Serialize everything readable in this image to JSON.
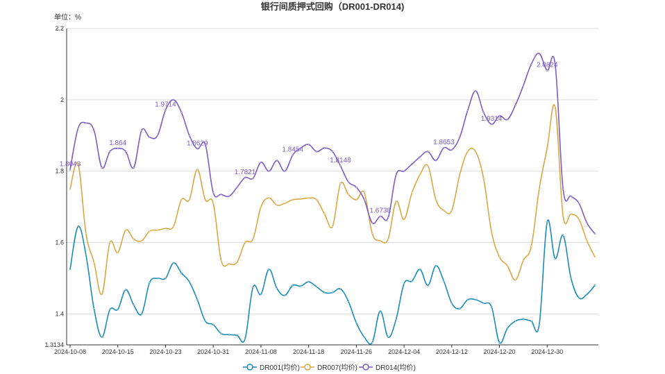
{
  "chart_data": {
    "type": "line",
    "title": "银行间质押式回购（DR001-DR014)",
    "ylabel": "单位：%",
    "ylim": [
      1.3134,
      2.2
    ],
    "ytick_labels": [
      "2.2",
      "2",
      "1.8",
      "1.6",
      "1.4",
      "1.3134"
    ],
    "ytick_values": [
      2.2,
      2.0,
      1.8,
      1.6,
      1.4,
      1.3134
    ],
    "x_tick_labels": [
      "2024-10-08",
      "2024-10-15",
      "2024-10-23",
      "2024-10-31",
      "2024-11-08",
      "2024-11-18",
      "2024-11-26",
      "2024-12-04",
      "2024-12-12",
      "2024-12-20",
      "2024-12-30"
    ],
    "x": [
      "2024-10-08",
      "2024-10-09",
      "2024-10-10",
      "2024-10-11",
      "2024-10-12",
      "2024-10-14",
      "2024-10-15",
      "2024-10-16",
      "2024-10-17",
      "2024-10-18",
      "2024-10-21",
      "2024-10-22",
      "2024-10-23",
      "2024-10-24",
      "2024-10-25",
      "2024-10-28",
      "2024-10-29",
      "2024-10-30",
      "2024-10-31",
      "2024-11-01",
      "2024-11-04",
      "2024-11-05",
      "2024-11-06",
      "2024-11-07",
      "2024-11-08",
      "2024-11-11",
      "2024-11-12",
      "2024-11-13",
      "2024-11-14",
      "2024-11-15",
      "2024-11-18",
      "2024-11-19",
      "2024-11-20",
      "2024-11-21",
      "2024-11-22",
      "2024-11-25",
      "2024-11-26",
      "2024-11-27",
      "2024-11-28",
      "2024-11-29",
      "2024-12-02",
      "2024-12-03",
      "2024-12-04",
      "2024-12-05",
      "2024-12-06",
      "2024-12-09",
      "2024-12-10",
      "2024-12-11",
      "2024-12-12",
      "2024-12-13",
      "2024-12-16",
      "2024-12-17",
      "2024-12-18",
      "2024-12-19",
      "2024-12-20",
      "2024-12-23",
      "2024-12-24",
      "2024-12-25",
      "2024-12-26",
      "2024-12-27",
      "2024-12-30",
      "2024-12-31",
      "2025-01-02",
      "2025-01-03",
      "2025-01-06",
      "2025-01-07",
      "2025-01-08"
    ],
    "series": [
      {
        "name": "DR001(均价)",
        "color": "#1a8bb9",
        "values": [
          1.525,
          1.645,
          1.565,
          1.415,
          1.335,
          1.412,
          1.413,
          1.468,
          1.425,
          1.4,
          1.488,
          1.5,
          1.5,
          1.543,
          1.515,
          1.49,
          1.44,
          1.38,
          1.37,
          1.345,
          1.342,
          1.34,
          1.33,
          1.475,
          1.455,
          1.525,
          1.472,
          1.452,
          1.48,
          1.478,
          1.49,
          1.476,
          1.46,
          1.46,
          1.47,
          1.435,
          1.375,
          1.335,
          1.32,
          1.408,
          1.335,
          1.385,
          1.485,
          1.492,
          1.525,
          1.48,
          1.535,
          1.492,
          1.43,
          1.415,
          1.44,
          1.44,
          1.43,
          1.42,
          1.32,
          1.36,
          1.38,
          1.385,
          1.38,
          1.37,
          1.658,
          1.555,
          1.62,
          1.5,
          1.445,
          1.455,
          1.48
        ]
      },
      {
        "name": "DR007(均价)",
        "color": "#d9a744",
        "values": [
          1.75,
          1.82,
          1.625,
          1.545,
          1.455,
          1.6,
          1.572,
          1.635,
          1.61,
          1.605,
          1.632,
          1.635,
          1.64,
          1.645,
          1.72,
          1.72,
          1.805,
          1.72,
          1.71,
          1.55,
          1.54,
          1.545,
          1.6,
          1.61,
          1.7,
          1.725,
          1.705,
          1.71,
          1.72,
          1.722,
          1.725,
          1.72,
          1.68,
          1.645,
          1.765,
          1.735,
          1.72,
          1.74,
          1.625,
          1.605,
          1.61,
          1.715,
          1.665,
          1.74,
          1.79,
          1.815,
          1.72,
          1.69,
          1.69,
          1.79,
          1.855,
          1.855,
          1.78,
          1.63,
          1.56,
          1.535,
          1.495,
          1.55,
          1.59,
          1.75,
          1.865,
          1.98,
          1.675,
          1.68,
          1.665,
          1.605,
          1.56
        ]
      },
      {
        "name": "DR014(均价)",
        "color": "#7b5cc4",
        "values": [
          1.8043,
          1.92,
          1.935,
          1.915,
          1.81,
          1.855,
          1.864,
          1.855,
          1.81,
          1.915,
          1.895,
          1.9,
          1.9714,
          2.0,
          1.965,
          1.9,
          1.8629,
          1.875,
          1.74,
          1.735,
          1.73,
          1.755,
          1.7821,
          1.78,
          1.825,
          1.8,
          1.83,
          1.8,
          1.8454,
          1.865,
          1.875,
          1.855,
          1.865,
          1.855,
          1.8148,
          1.77,
          1.755,
          1.72,
          1.655,
          1.6738,
          1.67,
          1.79,
          1.8,
          1.82,
          1.84,
          1.855,
          1.83,
          1.8653,
          1.86,
          1.895,
          1.97,
          2.025,
          1.965,
          1.9314,
          1.955,
          1.945,
          1.985,
          2.04,
          2.1,
          2.13,
          2.0824,
          2.1,
          1.75,
          1.73,
          1.71,
          1.655,
          1.625
        ]
      }
    ],
    "data_labels": [
      {
        "series": 2,
        "index": 0,
        "text": "1.8043"
      },
      {
        "series": 2,
        "index": 6,
        "text": "1.864"
      },
      {
        "series": 2,
        "index": 12,
        "text": "1.9714"
      },
      {
        "series": 2,
        "index": 16,
        "text": "1.8629"
      },
      {
        "series": 2,
        "index": 22,
        "text": "1.7821"
      },
      {
        "series": 2,
        "index": 28,
        "text": "1.8454"
      },
      {
        "series": 2,
        "index": 34,
        "text": "1.8148"
      },
      {
        "series": 2,
        "index": 39,
        "text": "1.6738"
      },
      {
        "series": 2,
        "index": 47,
        "text": "1.8653"
      },
      {
        "series": 2,
        "index": 53,
        "text": "1.9314"
      },
      {
        "series": 2,
        "index": 60,
        "text": "2.0824"
      }
    ],
    "grid": true,
    "legend": "bottom-center"
  }
}
